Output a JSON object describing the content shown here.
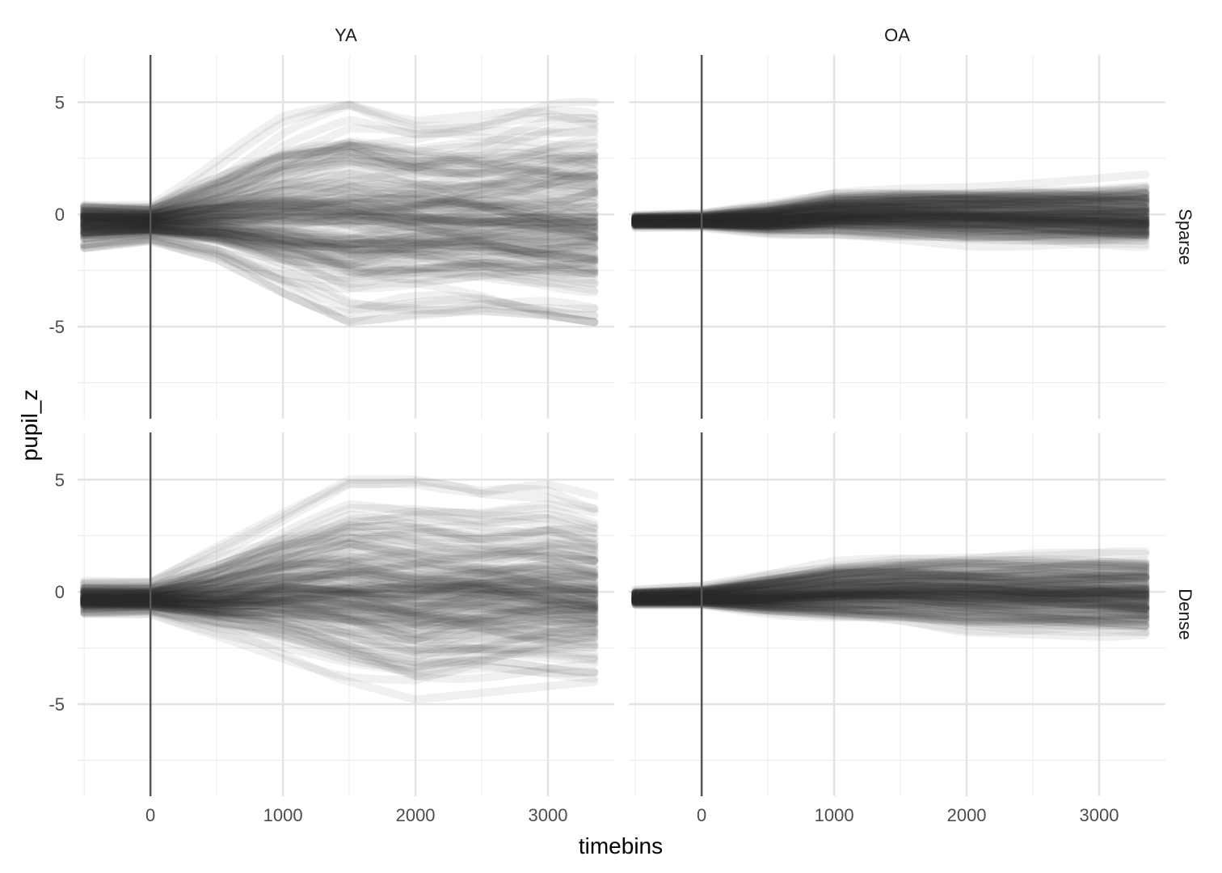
{
  "chart_data": {
    "type": "line",
    "facet_columns": [
      "YA",
      "OA"
    ],
    "facet_rows": [
      "Sparse",
      "Dense"
    ],
    "xlabel": "timebins",
    "ylabel": "pupil_z",
    "xlim": [
      -550,
      3500
    ],
    "ylim": [
      -9.1,
      7.1
    ],
    "x_ticks": [
      0,
      1000,
      2000,
      3000
    ],
    "y_ticks": [
      -5,
      0,
      5
    ],
    "x_tick_labels": [
      "0",
      "1000",
      "2000",
      "3000"
    ],
    "y_tick_labels": [
      "-5",
      "0",
      "5"
    ],
    "vline_x": 0,
    "trace_x_range": [
      -500,
      3350
    ],
    "grid": true,
    "line_color": "#303030",
    "approx_envelope": {
      "x": [
        -500,
        0,
        500,
        1000,
        1500,
        2000,
        2500,
        3000,
        3350
      ],
      "panels": [
        {
          "column": "YA",
          "row": "Sparse",
          "median": [
            -0.3,
            -0.3,
            -0.1,
            0.1,
            0.2,
            0.1,
            0.0,
            -0.1,
            -0.1
          ],
          "lower": [
            -1.5,
            -1.2,
            -2.0,
            -3.5,
            -4.8,
            -4.5,
            -4.3,
            -4.5,
            -4.8
          ],
          "upper": [
            0.7,
            0.6,
            2.5,
            4.5,
            5.7,
            5.0,
            5.3,
            6.0,
            6.2
          ]
        },
        {
          "column": "OA",
          "row": "Sparse",
          "median": [
            -0.3,
            -0.3,
            -0.25,
            0.0,
            0.05,
            0.0,
            -0.05,
            -0.1,
            -0.15
          ],
          "lower": [
            -0.6,
            -0.6,
            -0.9,
            -1.0,
            -1.3,
            -1.5,
            -1.5,
            -1.5,
            -1.5
          ],
          "upper": [
            0.0,
            0.1,
            0.6,
            1.2,
            1.3,
            1.4,
            1.6,
            1.7,
            1.8
          ]
        },
        {
          "column": "YA",
          "row": "Dense",
          "median": [
            -0.3,
            -0.3,
            -0.2,
            0.3,
            0.4,
            0.2,
            0.3,
            0.2,
            0.0
          ],
          "lower": [
            -1.0,
            -1.0,
            -2.0,
            -3.0,
            -4.0,
            -4.8,
            -4.5,
            -4.2,
            -4.0
          ],
          "upper": [
            0.5,
            0.5,
            2.0,
            3.5,
            5.0,
            5.0,
            4.5,
            4.8,
            4.3
          ]
        },
        {
          "column": "OA",
          "row": "Dense",
          "median": [
            -0.3,
            -0.3,
            -0.2,
            0.0,
            0.1,
            0.0,
            -0.1,
            -0.1,
            -0.2
          ],
          "lower": [
            -0.6,
            -0.6,
            -1.0,
            -1.3,
            -1.5,
            -1.8,
            -1.9,
            -2.0,
            -2.0
          ],
          "upper": [
            0.1,
            0.3,
            0.9,
            1.4,
            1.6,
            1.7,
            1.8,
            1.8,
            1.8
          ]
        }
      ]
    }
  }
}
